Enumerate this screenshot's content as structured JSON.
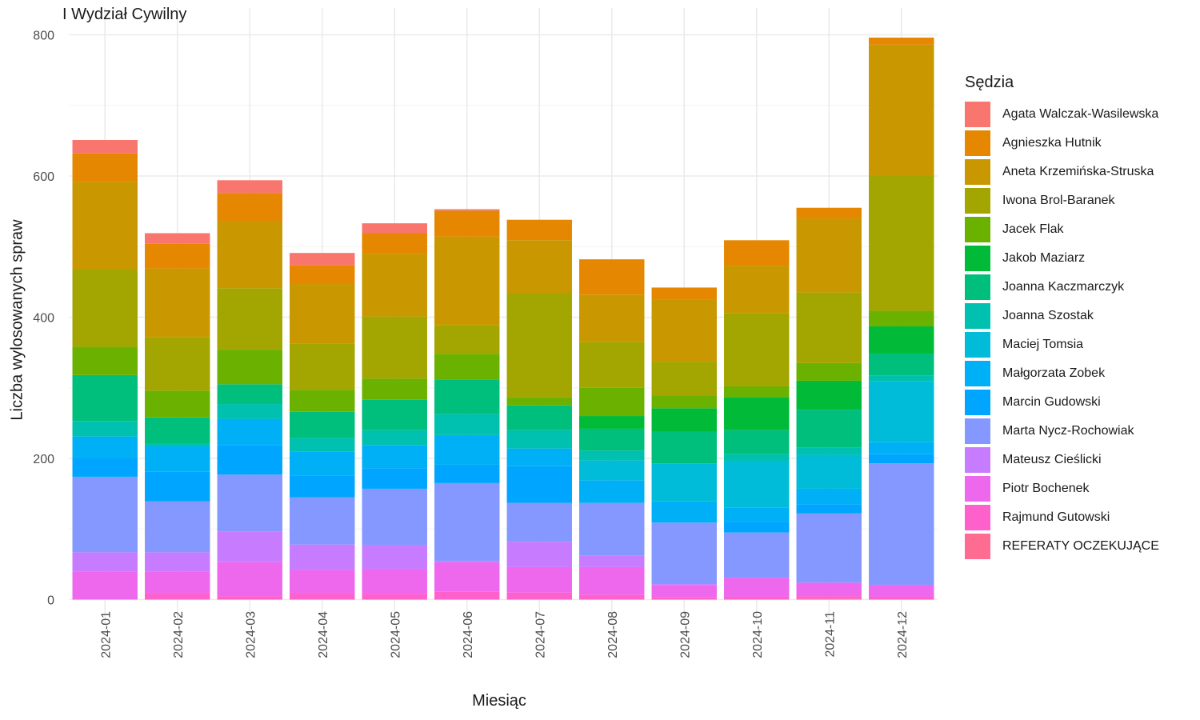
{
  "chart_data": {
    "type": "bar",
    "stacked": true,
    "title": "I Wydział Cywilny",
    "xlabel": "Miesiąc",
    "ylabel": "Liczba wylosowanych spraw",
    "ylim": [
      0,
      800
    ],
    "yticks": [
      0,
      200,
      400,
      600,
      800
    ],
    "grid": true,
    "legend_title": "Sędzia",
    "legend_position": "right",
    "categories": [
      "2024-01",
      "2024-02",
      "2024-03",
      "2024-04",
      "2024-05",
      "2024-06",
      "2024-07",
      "2024-08",
      "2024-09",
      "2024-10",
      "2024-11",
      "2024-12"
    ],
    "series": [
      {
        "name": "Agata Walczak-Wasilewska",
        "color": "#F8766D",
        "values": [
          19,
          15,
          18,
          17,
          14,
          2,
          0,
          0,
          0,
          0,
          0,
          0
        ]
      },
      {
        "name": "Agnieszka Hutnik",
        "color": "#E58700",
        "values": [
          40,
          35,
          40,
          27,
          29,
          37,
          29,
          50,
          17,
          36,
          15,
          10
        ]
      },
      {
        "name": "Aneta Krzemińska-Struska",
        "color": "#C99800",
        "values": [
          124,
          97,
          95,
          84,
          89,
          125,
          75,
          67,
          88,
          67,
          105,
          186
        ]
      },
      {
        "name": "Iwona Brol-Baranek",
        "color": "#A3A500",
        "values": [
          110,
          76,
          87,
          66,
          88,
          41,
          147,
          65,
          48,
          104,
          100,
          191
        ]
      },
      {
        "name": "Jacek Flak",
        "color": "#6BB100",
        "values": [
          40,
          38,
          49,
          31,
          30,
          36,
          12,
          40,
          18,
          15,
          25,
          22
        ]
      },
      {
        "name": "Jakob Maziarz",
        "color": "#00BA38",
        "values": [
          0,
          0,
          0,
          0,
          0,
          0,
          0,
          18,
          33,
          47,
          41,
          38
        ]
      },
      {
        "name": "Joanna Kaczmarczyk",
        "color": "#00BF7D",
        "values": [
          65,
          37,
          28,
          37,
          43,
          49,
          35,
          31,
          45,
          34,
          54,
          32
        ]
      },
      {
        "name": "Joanna Szostak",
        "color": "#00C0AF",
        "values": [
          22,
          4,
          21,
          19,
          21,
          30,
          26,
          14,
          0,
          10,
          10,
          8
        ]
      },
      {
        "name": "Maciej Tomsia",
        "color": "#00BCD8",
        "values": [
          0,
          0,
          0,
          0,
          0,
          0,
          0,
          28,
          54,
          66,
          48,
          86
        ]
      },
      {
        "name": "Małgorzata Zobek",
        "color": "#00B0F6",
        "values": [
          31,
          36,
          37,
          34,
          33,
          42,
          25,
          32,
          30,
          20,
          22,
          17
        ]
      },
      {
        "name": "Marcin Gudowski",
        "color": "#00A5FF",
        "values": [
          26,
          42,
          42,
          31,
          29,
          26,
          52,
          0,
          0,
          15,
          13,
          13
        ]
      },
      {
        "name": "Marta Nycz-Rochowiak",
        "color": "#8598FF",
        "values": [
          107,
          72,
          81,
          67,
          80,
          110,
          55,
          75,
          87,
          64,
          98,
          172
        ]
      },
      {
        "name": "Mateusz Cieślicki",
        "color": "#C77CFF",
        "values": [
          27,
          27,
          43,
          36,
          34,
          2,
          36,
          16,
          2,
          0,
          0,
          0
        ]
      },
      {
        "name": "Piotr Bochenek",
        "color": "#ED68ED",
        "values": [
          40,
          31,
          48,
          33,
          35,
          42,
          36,
          39,
          17,
          27,
          19,
          17
        ]
      },
      {
        "name": "Rajmund Gutowski",
        "color": "#FF61CC",
        "values": [
          0,
          9,
          5,
          9,
          8,
          11,
          10,
          7,
          3,
          4,
          4,
          4
        ]
      },
      {
        "name": "REFERATY OCZEKUJĄCE",
        "color": "#FF6C91",
        "values": [
          0,
          0,
          0,
          0,
          0,
          0,
          0,
          0,
          0,
          0,
          1,
          0
        ]
      }
    ]
  }
}
